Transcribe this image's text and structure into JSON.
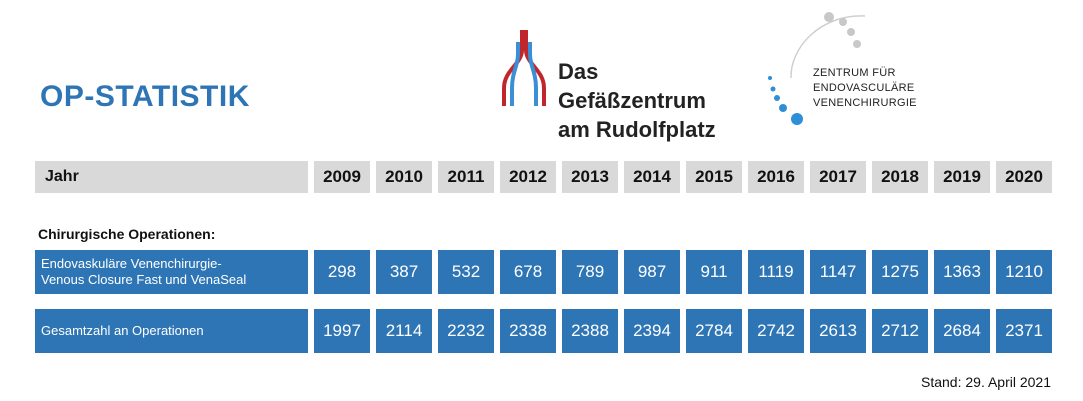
{
  "title": "OP-STATISTIK",
  "logo_left": {
    "line1": "Das Gefäßzentrum",
    "line2": "am Rudolfplatz",
    "colors": {
      "red": "#c0272d",
      "blue": "#3a8fd6"
    }
  },
  "logo_right": {
    "line1": "ZENTRUM FÜR",
    "line2": "ENDOVASCULÄRE",
    "line3": "VENENCHIRURGIE"
  },
  "colors": {
    "accent": "#2e75b6",
    "header_bg": "#d9d9d9"
  },
  "chart_data": {
    "type": "table",
    "header_label": "Jahr",
    "columns": [
      "2009",
      "2010",
      "2011",
      "2012",
      "2013",
      "2014",
      "2015",
      "2016",
      "2017",
      "2018",
      "2019",
      "2020"
    ],
    "section_label": "Chirurgische Operationen:",
    "rows": [
      {
        "label_line1": "Endovaskuläre Venenchirurgie-",
        "label_line2": "Venous Closure Fast und VenaSeal",
        "values": [
          298,
          387,
          532,
          678,
          789,
          987,
          911,
          1119,
          1147,
          1275,
          1363,
          1210
        ]
      },
      {
        "label_line1": "Gesamtzahl an Operationen",
        "label_line2": "",
        "values": [
          1997,
          2114,
          2232,
          2338,
          2388,
          2394,
          2784,
          2742,
          2613,
          2712,
          2684,
          2371
        ]
      }
    ]
  },
  "footer": {
    "stand": "Stand: 29. April 2021"
  }
}
